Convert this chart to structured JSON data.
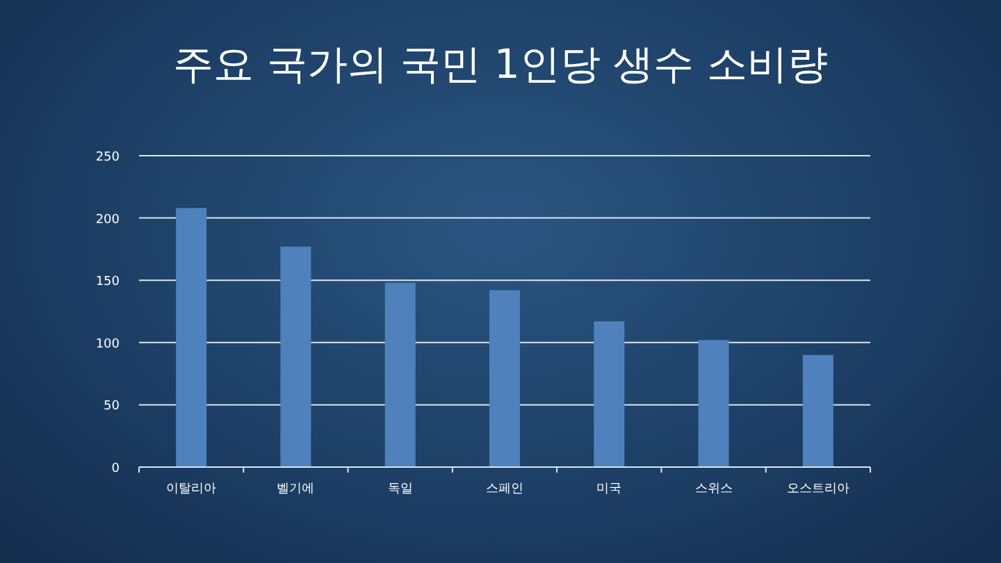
{
  "chart_data": {
    "type": "bar",
    "title": "주요 국가의 국민 1인당 생수 소비량",
    "categories": [
      "이탈리아",
      "벨기에",
      "독일",
      "스페인",
      "미국",
      "스위스",
      "오스트리아"
    ],
    "values": [
      208,
      177,
      148,
      142,
      117,
      102,
      90
    ],
    "color": "#4f81bd",
    "ylim": [
      0,
      250
    ],
    "yticks": [
      0,
      50,
      100,
      150,
      200,
      250
    ],
    "grid": "y"
  }
}
